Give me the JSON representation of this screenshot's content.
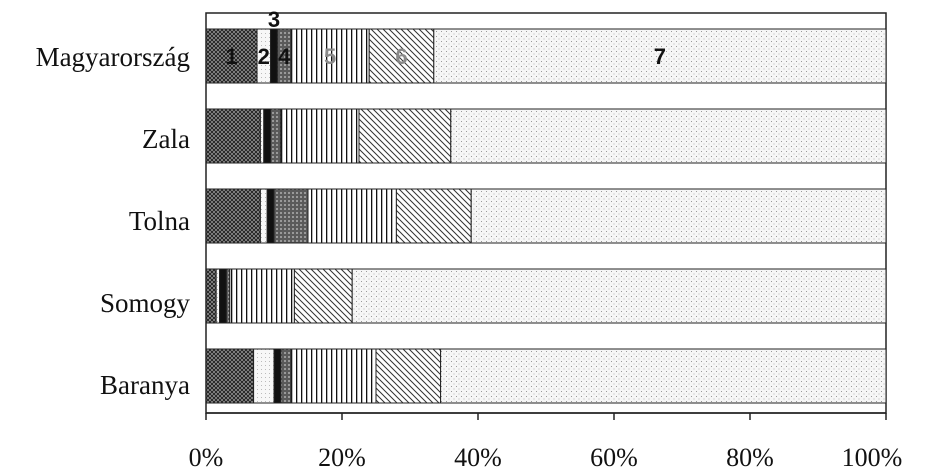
{
  "chart_data": {
    "type": "bar",
    "orientation": "horizontal",
    "stacked": "percent",
    "categories": [
      "Magyarország",
      "Zala",
      "Tolna",
      "Somogy",
      "Baranya"
    ],
    "x_ticks": [
      "0%",
      "20%",
      "40%",
      "60%",
      "80%",
      "100%"
    ],
    "xlim": [
      0,
      100
    ],
    "grid": false,
    "legend": "none",
    "series": [
      {
        "name": "1",
        "values": [
          7.5,
          8.0,
          8.0,
          1.5,
          7.0
        ],
        "color": "#4d4d4d"
      },
      {
        "name": "2",
        "values": [
          2.0,
          0.5,
          1.0,
          0.5,
          3.0
        ],
        "color": "#f2f2f2"
      },
      {
        "name": "3",
        "values": [
          1.0,
          1.0,
          1.0,
          1.0,
          1.0
        ],
        "color": "#111111"
      },
      {
        "name": "4",
        "values": [
          2.0,
          1.5,
          5.0,
          0.5,
          1.5
        ],
        "color": "#7a7a7a"
      },
      {
        "name": "5",
        "values": [
          11.5,
          11.5,
          13.0,
          9.5,
          12.5
        ],
        "color": "#eeeeee"
      },
      {
        "name": "6",
        "values": [
          9.5,
          13.5,
          11.0,
          8.5,
          9.5
        ],
        "color": "#bdbdbd"
      },
      {
        "name": "7",
        "values": [
          66.5,
          64.0,
          61.0,
          78.5,
          65.5
        ],
        "color": "#e0e0e0"
      }
    ]
  }
}
